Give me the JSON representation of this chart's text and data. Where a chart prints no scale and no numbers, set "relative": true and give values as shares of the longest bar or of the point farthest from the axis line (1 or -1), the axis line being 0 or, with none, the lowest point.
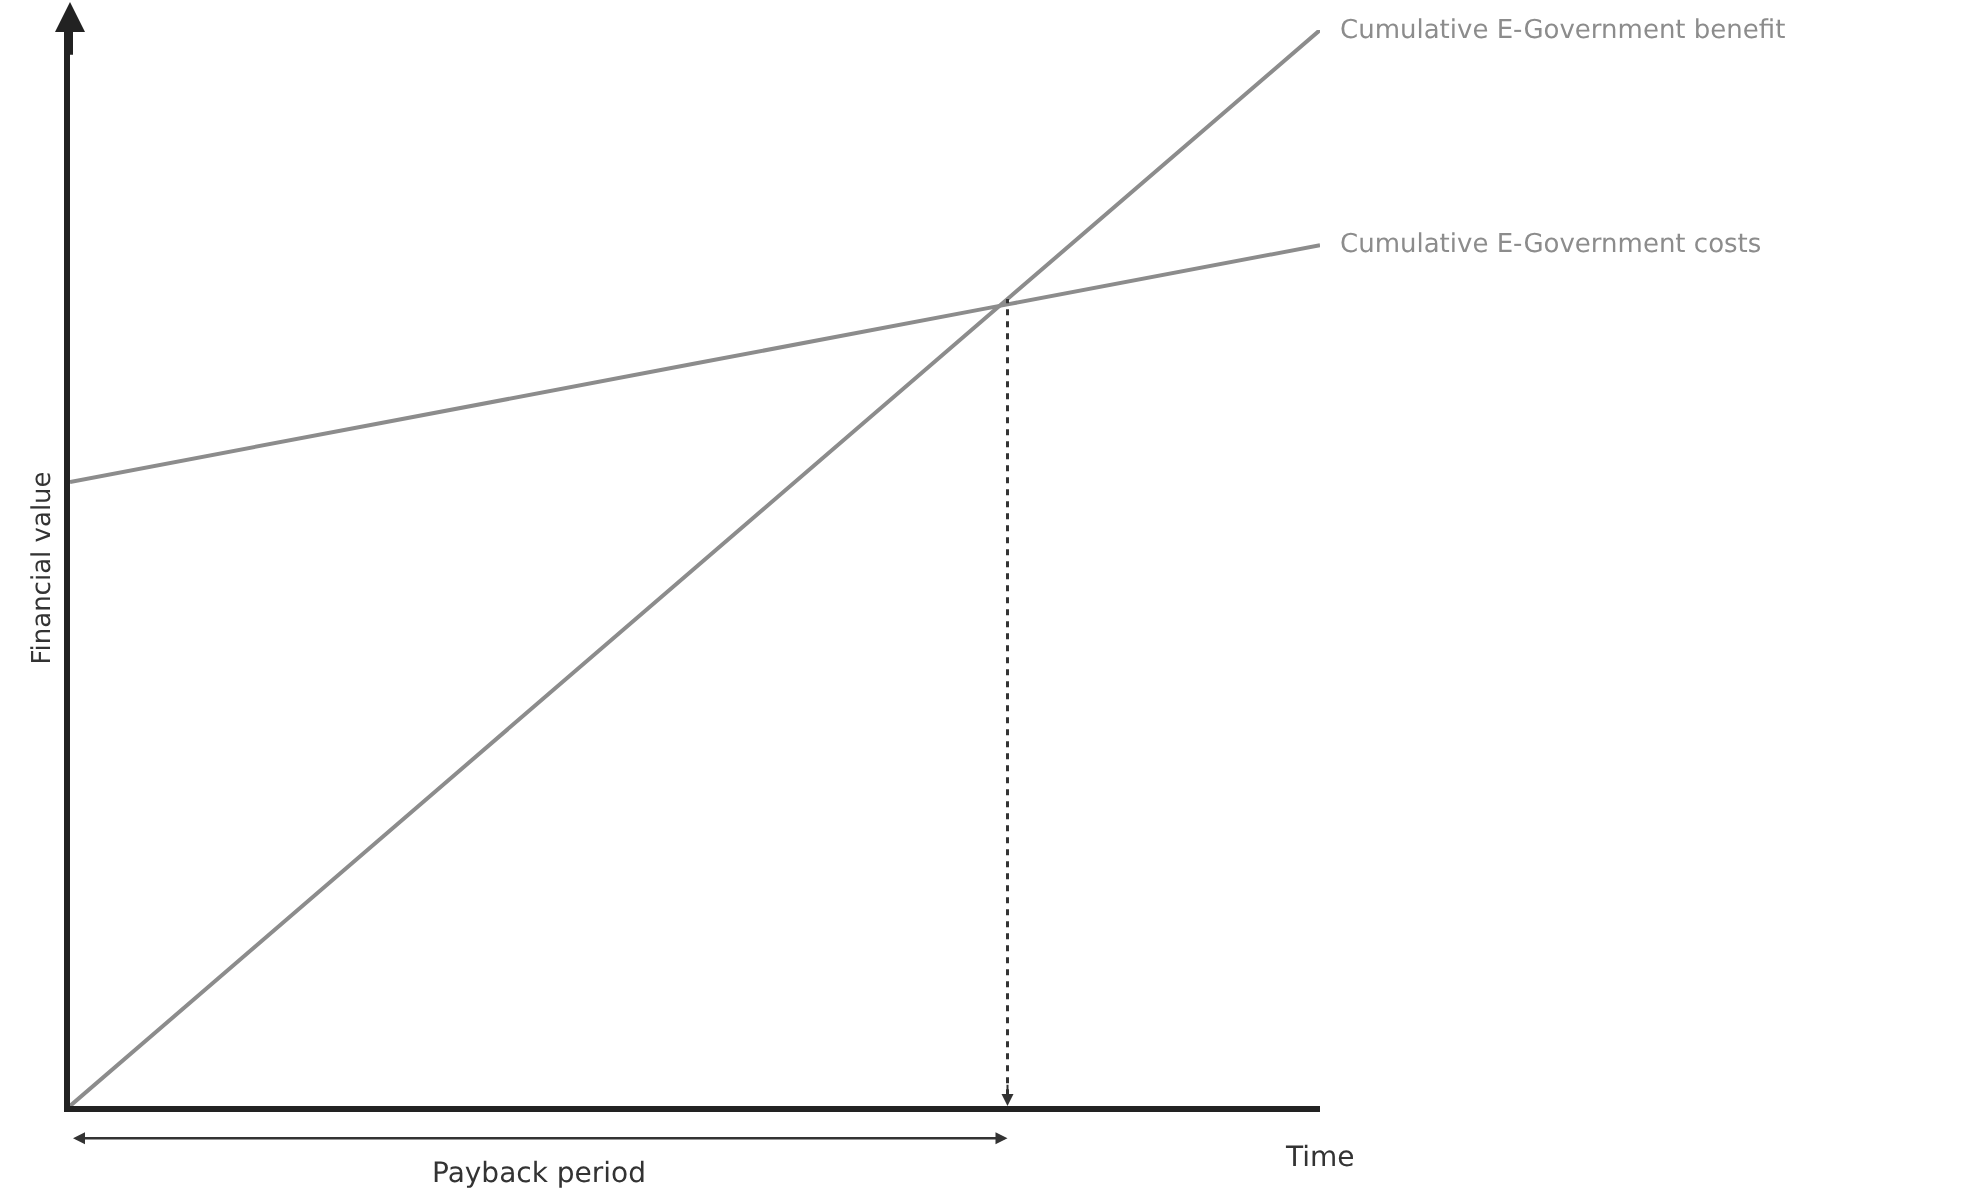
{
  "chart_data": {
    "type": "line",
    "relative": true,
    "xlabel": "Time",
    "ylabel": "Financial value",
    "categories": [
      null,
      null,
      null,
      null,
      null
    ],
    "series": [
      {
        "name": "Cumulative E-Government benefit",
        "color": "#8c8c8c",
        "values": [
          0,
          0.25,
          0.5,
          0.75,
          1
        ]
      },
      {
        "name": "Cumulative E-Government costs",
        "color": "#8c8c8c",
        "values": [
          0.58,
          0.635,
          0.69,
          0.745,
          0.8
        ]
      }
    ],
    "annotations": [
      "Payback period"
    ],
    "legend": false,
    "marker": "none",
    "line_style": "solid",
    "tick_labels": false
  }
}
